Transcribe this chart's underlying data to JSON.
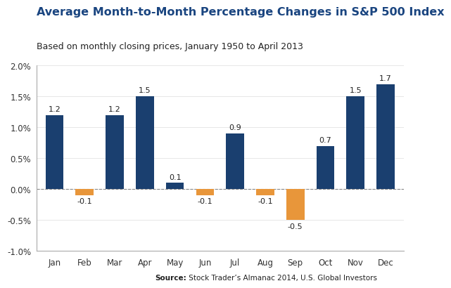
{
  "months": [
    "Jan",
    "Feb",
    "Mar",
    "Apr",
    "May",
    "Jun",
    "Jul",
    "Aug",
    "Sep",
    "Oct",
    "Nov",
    "Dec"
  ],
  "values": [
    1.2,
    -0.1,
    1.2,
    1.5,
    0.1,
    -0.1,
    0.9,
    -0.1,
    -0.5,
    0.7,
    1.5,
    1.7
  ],
  "positive_color": "#1a3f6f",
  "negative_color": "#e8963a",
  "title": "Average Month-to-Month Percentage Changes in S&P 500 Index",
  "subtitle": "Based on monthly closing prices, January 1950 to April 2013",
  "source_bold": "Source:",
  "source_rest": " Stock Trader’s Almanac 2014, U.S. Global Investors",
  "ylim": [
    -1.0,
    2.0
  ],
  "yticks": [
    -1.0,
    -0.5,
    0.0,
    0.5,
    1.0,
    1.5,
    2.0
  ],
  "title_color": "#1a4580",
  "subtitle_color": "#222222",
  "bar_label_fontsize": 8,
  "title_fontsize": 11.5,
  "subtitle_fontsize": 9,
  "source_fontsize": 7.5,
  "tick_fontsize": 8.5
}
